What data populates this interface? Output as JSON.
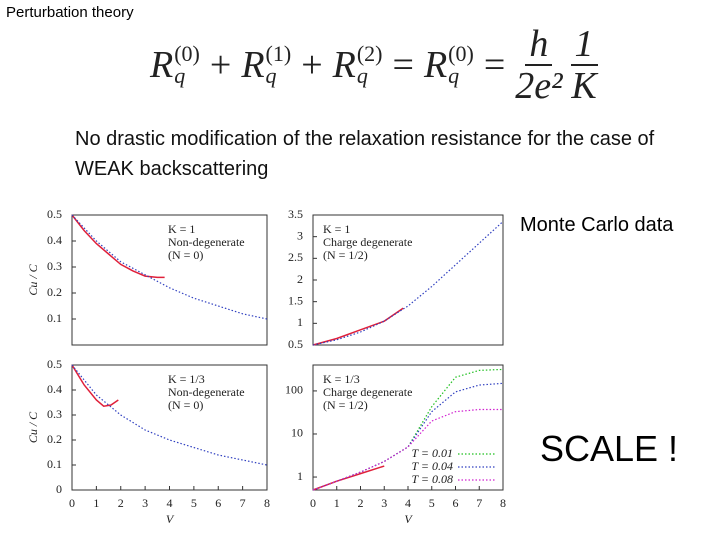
{
  "header": "Perturbation theory",
  "formula": {
    "terms": [
      {
        "base": "R",
        "sup": "(0)",
        "sub": "q"
      },
      {
        "base": "R",
        "sup": "(1)",
        "sub": "q"
      },
      {
        "base": "R",
        "sup": "(2)",
        "sub": "q"
      },
      {
        "base": "R",
        "sup": "(0)",
        "sub": "q"
      }
    ],
    "operators": [
      "+",
      "+",
      "=",
      "="
    ],
    "fractions": [
      {
        "num": "h",
        "den": "2e²"
      },
      {
        "num": "1",
        "den": "K"
      }
    ]
  },
  "statement": "No drastic modification of the relaxation resistance for the case of WEAK backscattering",
  "note": "Monte Carlo data",
  "callout": "SCALE !",
  "chart_data": [
    {
      "type": "line",
      "ylabel": "Cu / C",
      "xlim": [
        0,
        8
      ],
      "ylim": [
        0,
        0.5
      ],
      "yticks": [
        0.1,
        0.2,
        0.3,
        0.4,
        0.5
      ],
      "annotations": [
        "K = 1",
        "Non-degenerate",
        "(N = 0)"
      ],
      "series": [
        {
          "color": "#e0203a",
          "style": "solid",
          "x": [
            0,
            0.5,
            1,
            1.5,
            2,
            2.5,
            3,
            3.5,
            3.8
          ],
          "values": [
            0.5,
            0.44,
            0.39,
            0.35,
            0.31,
            0.285,
            0.265,
            0.26,
            0.26
          ]
        },
        {
          "color": "#3040c0",
          "style": "dotted",
          "x": [
            0,
            1,
            2,
            3,
            4,
            5,
            6,
            7,
            8
          ],
          "values": [
            0.5,
            0.4,
            0.32,
            0.27,
            0.22,
            0.18,
            0.15,
            0.12,
            0.1
          ]
        }
      ]
    },
    {
      "type": "line",
      "xlim": [
        0,
        8
      ],
      "ylim": [
        0.5,
        3.5
      ],
      "yticks": [
        0.5,
        1,
        1.5,
        2,
        2.5,
        3,
        3.5
      ],
      "annotations": [
        "K = 1",
        "Charge degenerate",
        "(N = 1/2)"
      ],
      "series": [
        {
          "color": "#e0203a",
          "style": "solid",
          "x": [
            0,
            1,
            2,
            3,
            3.8
          ],
          "values": [
            0.5,
            0.65,
            0.85,
            1.05,
            1.35
          ]
        },
        {
          "color": "#3040c0",
          "style": "dotted",
          "x": [
            0,
            1,
            2,
            3,
            4,
            5,
            6,
            7,
            8
          ],
          "values": [
            0.5,
            0.62,
            0.8,
            1.05,
            1.4,
            1.85,
            2.35,
            2.85,
            3.35
          ]
        }
      ]
    },
    {
      "type": "line",
      "ylabel": "Cu / C",
      "xlabel": "V",
      "xlim": [
        0,
        8
      ],
      "ylim": [
        0,
        0.5
      ],
      "yticks": [
        0,
        0.1,
        0.2,
        0.3,
        0.4,
        0.5
      ],
      "xticks": [
        0,
        1,
        2,
        3,
        4,
        5,
        6,
        7,
        8
      ],
      "annotations": [
        "K = 1/3",
        "Non-degenerate",
        "(N = 0)"
      ],
      "series": [
        {
          "color": "#e0203a",
          "style": "solid",
          "x": [
            0,
            0.5,
            1,
            1.3,
            1.6,
            1.9
          ],
          "values": [
            0.5,
            0.42,
            0.36,
            0.335,
            0.34,
            0.36
          ]
        },
        {
          "color": "#3040c0",
          "style": "dotted",
          "x": [
            0,
            1,
            2,
            3,
            4,
            5,
            6,
            7,
            8
          ],
          "values": [
            0.5,
            0.38,
            0.3,
            0.24,
            0.2,
            0.17,
            0.14,
            0.12,
            0.1
          ]
        }
      ]
    },
    {
      "type": "line",
      "xlabel": "V",
      "log_y": true,
      "xlim": [
        0,
        8
      ],
      "ylim": [
        0.5,
        400
      ],
      "yticks": [
        1,
        10,
        100
      ],
      "xticks": [
        0,
        1,
        2,
        3,
        4,
        5,
        6,
        7,
        8
      ],
      "annotations": [
        "K = 1/3",
        "Charge degenerate",
        "(N = 1/2)"
      ],
      "legend": "lower right",
      "series": [
        {
          "color": "#e0203a",
          "style": "solid",
          "x": [
            0,
            1,
            2,
            3
          ],
          "values": [
            0.5,
            0.8,
            1.2,
            1.8
          ]
        },
        {
          "name": "T = 0.01",
          "color": "#20c020",
          "style": "dotted",
          "x": [
            0,
            1,
            2,
            3,
            4,
            5,
            6,
            7,
            8
          ],
          "values": [
            0.5,
            0.8,
            1.3,
            2.3,
            5,
            43,
            208,
            300,
            316
          ]
        },
        {
          "name": "T = 0.04",
          "color": "#3040c0",
          "style": "dotted",
          "x": [
            0,
            1,
            2,
            3,
            4,
            5,
            6,
            7,
            8
          ],
          "values": [
            0.5,
            0.8,
            1.3,
            2.3,
            5,
            33,
            95,
            137,
            150
          ]
        },
        {
          "name": "T = 0.08",
          "color": "#d020d0",
          "style": "dotted",
          "x": [
            0,
            1,
            2,
            3,
            4,
            5,
            6,
            7,
            8
          ],
          "values": [
            0.5,
            0.8,
            1.3,
            2.3,
            5,
            20,
            33,
            37,
            37
          ]
        }
      ]
    }
  ]
}
